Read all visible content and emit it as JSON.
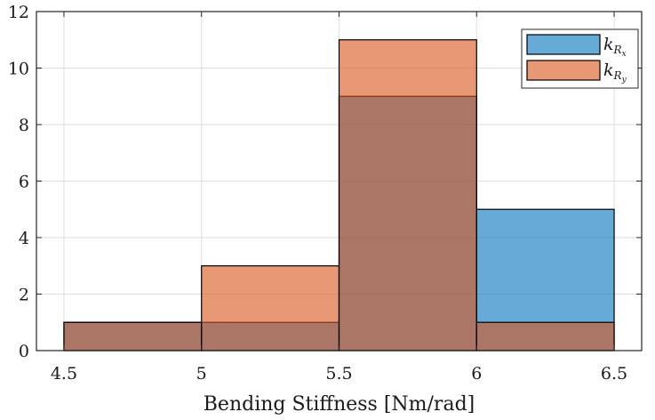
{
  "chart_data": {
    "type": "bar",
    "subtype": "overlapping-histogram",
    "title": "",
    "xlabel": "Bending Stiffness [Nm/rad]",
    "ylabel": "",
    "xlim": [
      4.4,
      6.6
    ],
    "ylim": [
      0,
      12
    ],
    "xticks": [
      "4.5",
      "5",
      "5.5",
      "6",
      "6.5"
    ],
    "yticks": [
      "0",
      "2",
      "4",
      "6",
      "8",
      "10",
      "12"
    ],
    "bin_edges": [
      4.5,
      5.0,
      5.5,
      6.0,
      6.5
    ],
    "grid": true,
    "legend_position": "top-right",
    "series": [
      {
        "name": "k_{R_x}",
        "legend": {
          "main": "k",
          "sub": "R",
          "subsub": "x"
        },
        "color": "#0072BD",
        "values": [
          1,
          1,
          9,
          5
        ]
      },
      {
        "name": "k_{R_y}",
        "legend": {
          "main": "k",
          "sub": "R",
          "subsub": "y"
        },
        "color": "#D95319",
        "values": [
          1,
          3,
          11,
          1
        ]
      }
    ],
    "overlap_color": "#A0675A"
  }
}
